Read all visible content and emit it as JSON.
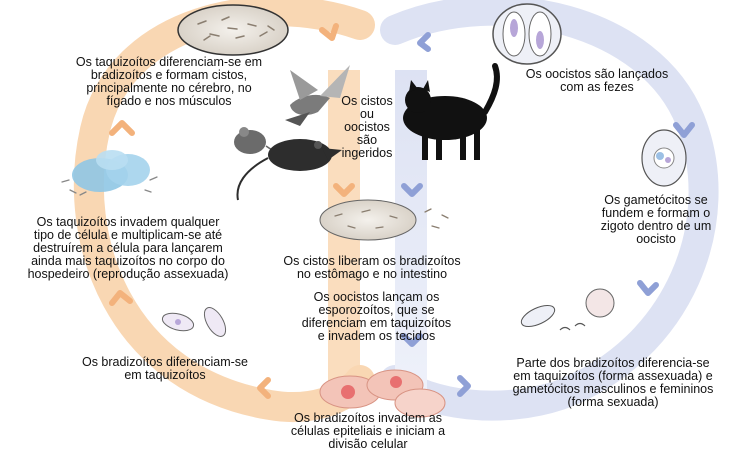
{
  "colors": {
    "orange_loop": "#f9d7b3",
    "orange_arrow": "#f3b27c",
    "blue_loop": "#dde2f3",
    "blue_arrow": "#8fa0d6",
    "cell_blue": "#8fc6e4",
    "red_cell": "#e87070",
    "text": "#111111"
  },
  "icons": [
    "cyst-icon",
    "oocyst-icon",
    "bird-icon",
    "mouse-icon",
    "rat-icon",
    "cat-icon",
    "tachyzoite-cells-icon",
    "gametocytes-icon",
    "bradyzoites-icon",
    "epithelial-cells-icon"
  ],
  "labels": {
    "cysts_form": "Os taquizoítos diferenciam-se em\nbradizoítos e formam cistos,\nprincipalmente no cérebro, no\nfígado e nos músculos",
    "ingested": "Os cistos\nou\noocistos\nsão\ningeridos",
    "oocysts_feces": "Os oocistos são lançados\ncom as fezes",
    "gametocytes_fuse": "Os gametócitos se\nfundem e formam o\nzigoto dentro de um\noocisto",
    "tachyzoites_invade": "Os taquizoítos invadem qualquer\ntipo de célula e multiplicam-se até\ndestruírem a célula para lançarem\nainda mais taquizoítos no corpo do\nhospedeiro (reprodução assexuada)",
    "cysts_release": "Os cistos liberam os bradizoítos\nno estômago e no intestino",
    "oocysts_release": "Os oocistos lançam os\nesporozoítos, que se\ndiferenciam em taquizoítos\ne invadem os tecidos",
    "bradyzoites_diff": "Os bradizoítos diferenciam-se\nem taquizoítos",
    "part_bradyzoites": "Parte dos bradizoítos diferencia-se\nem taquizoítos (forma assexuada) e\ngametócitos masculinos e femininos\n(forma sexuada)",
    "bradyzoites_invade": "Os bradizoítos invadem as\ncélulas epiteliais e iniciam a\ndivisão celular"
  }
}
